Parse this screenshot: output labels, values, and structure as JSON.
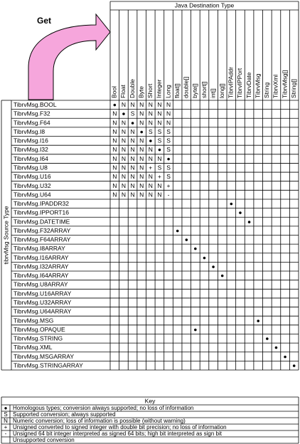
{
  "get_label": "Get",
  "header": {
    "title": "Java Destination Type",
    "columns": [
      "Bool",
      "Float",
      "Double",
      "Byte",
      "Short",
      "Integer",
      "Long",
      "float[]",
      "double[]",
      "byte[]",
      "short[]",
      "int[]",
      "long[]",
      "TibrvIPAddr",
      "TibrvIPPort",
      "TibrvDate",
      "TibrvMsg",
      "String",
      "TibrvXml",
      "TibrvMsg[]",
      "String[]"
    ]
  },
  "side_label": "tibrvMsg Source Type",
  "rows": [
    {
      "label": "TibrvMsg.BOOL",
      "cells": [
        "●",
        "N",
        "N",
        "N",
        "N",
        "N",
        "N",
        null,
        null,
        null,
        null,
        null,
        null,
        null,
        null,
        null,
        null,
        null,
        null,
        null,
        null
      ]
    },
    {
      "label": "TibrvMsg.F32",
      "cells": [
        "N",
        "●",
        "S",
        "N",
        "N",
        "N",
        "N",
        null,
        null,
        null,
        null,
        null,
        null,
        null,
        null,
        null,
        null,
        null,
        null,
        null,
        null
      ]
    },
    {
      "label": "TibrvMsg.F64",
      "cells": [
        "N",
        "N",
        "●",
        "N",
        "N",
        "N",
        "N",
        null,
        null,
        null,
        null,
        null,
        null,
        null,
        null,
        null,
        null,
        null,
        null,
        null,
        null
      ]
    },
    {
      "label": "TibrvMsg.I8",
      "cells": [
        "N",
        "N",
        "N",
        "●",
        "S",
        "S",
        "S",
        null,
        null,
        null,
        null,
        null,
        null,
        null,
        null,
        null,
        null,
        null,
        null,
        null,
        null
      ]
    },
    {
      "label": "TibrvMsg.I16",
      "cells": [
        "N",
        "N",
        "N",
        "N",
        "●",
        "S",
        "S",
        null,
        null,
        null,
        null,
        null,
        null,
        null,
        null,
        null,
        null,
        null,
        null,
        null,
        null
      ]
    },
    {
      "label": "TibrvMsg.I32",
      "cells": [
        "N",
        "N",
        "N",
        "N",
        "N",
        "●",
        "S",
        null,
        null,
        null,
        null,
        null,
        null,
        null,
        null,
        null,
        null,
        null,
        null,
        null,
        null
      ]
    },
    {
      "label": "TibrvMsg.I64",
      "cells": [
        "N",
        "N",
        "N",
        "N",
        "N",
        "N",
        "●",
        null,
        null,
        null,
        null,
        null,
        null,
        null,
        null,
        null,
        null,
        null,
        null,
        null,
        null
      ]
    },
    {
      "label": "TibrvMsg.U8",
      "cells": [
        "N",
        "N",
        "N",
        "N",
        "+",
        "S",
        "S",
        null,
        null,
        null,
        null,
        null,
        null,
        null,
        null,
        null,
        null,
        null,
        null,
        null,
        null
      ]
    },
    {
      "label": "TibrvMsg.U16",
      "cells": [
        "N",
        "N",
        "N",
        "N",
        "N",
        "+",
        "S",
        null,
        null,
        null,
        null,
        null,
        null,
        null,
        null,
        null,
        null,
        null,
        null,
        null,
        null
      ]
    },
    {
      "label": "TibrvMsg.U32",
      "cells": [
        "N",
        "N",
        "N",
        "N",
        "N",
        "N",
        "+",
        null,
        null,
        null,
        null,
        null,
        null,
        null,
        null,
        null,
        null,
        null,
        null,
        null,
        null
      ]
    },
    {
      "label": "TibrvMsg.U64",
      "cells": [
        "N",
        "N",
        "N",
        "N",
        "N",
        "N",
        "-",
        null,
        null,
        null,
        null,
        null,
        null,
        null,
        null,
        null,
        null,
        null,
        null,
        null,
        null
      ]
    },
    {
      "label": "TibrvMsg.IPADDR32",
      "cells": [
        null,
        null,
        null,
        null,
        null,
        null,
        null,
        null,
        null,
        null,
        null,
        null,
        null,
        "●",
        null,
        null,
        null,
        null,
        null,
        null,
        null
      ]
    },
    {
      "label": "TibrvMsg.IPPORT16",
      "cells": [
        null,
        null,
        null,
        null,
        null,
        null,
        null,
        null,
        null,
        null,
        null,
        null,
        null,
        null,
        "●",
        null,
        null,
        null,
        null,
        null,
        null
      ]
    },
    {
      "label": "TibrvMsg.DATETIME",
      "cells": [
        null,
        null,
        null,
        null,
        null,
        null,
        null,
        null,
        null,
        null,
        null,
        null,
        null,
        null,
        null,
        "●",
        null,
        null,
        null,
        null,
        null
      ]
    },
    {
      "label": "TibrvMsg.F32ARRAY",
      "cells": [
        null,
        null,
        null,
        null,
        null,
        null,
        null,
        "●",
        null,
        null,
        null,
        null,
        null,
        null,
        null,
        null,
        null,
        null,
        null,
        null,
        null
      ]
    },
    {
      "label": "TibrvMsg.F64ARRAY",
      "cells": [
        null,
        null,
        null,
        null,
        null,
        null,
        null,
        null,
        "●",
        null,
        null,
        null,
        null,
        null,
        null,
        null,
        null,
        null,
        null,
        null,
        null
      ]
    },
    {
      "label": "TibrvMsg.I8ARRAY",
      "cells": [
        null,
        null,
        null,
        null,
        null,
        null,
        null,
        null,
        null,
        "●",
        null,
        null,
        null,
        null,
        null,
        null,
        null,
        null,
        null,
        null,
        null
      ]
    },
    {
      "label": "TibrvMsg.I16ARRAY",
      "cells": [
        null,
        null,
        null,
        null,
        null,
        null,
        null,
        null,
        null,
        null,
        "●",
        null,
        null,
        null,
        null,
        null,
        null,
        null,
        null,
        null,
        null
      ]
    },
    {
      "label": "TibrvMsg.I32ARRAY",
      "cells": [
        null,
        null,
        null,
        null,
        null,
        null,
        null,
        null,
        null,
        null,
        null,
        "●",
        null,
        null,
        null,
        null,
        null,
        null,
        null,
        null,
        null
      ]
    },
    {
      "label": "TibrvMsg.I64ARRAY",
      "cells": [
        null,
        null,
        null,
        null,
        null,
        null,
        null,
        null,
        null,
        null,
        null,
        null,
        "●",
        null,
        null,
        null,
        null,
        null,
        null,
        null,
        null
      ]
    },
    {
      "label": "TibrvMsg.U8ARRAY",
      "cells": [
        null,
        null,
        null,
        null,
        null,
        null,
        null,
        null,
        null,
        null,
        null,
        null,
        null,
        null,
        null,
        null,
        null,
        null,
        null,
        null,
        null
      ]
    },
    {
      "label": "TibrvMsg.U16ARRAY",
      "cells": [
        null,
        null,
        null,
        null,
        null,
        null,
        null,
        null,
        null,
        null,
        null,
        null,
        null,
        null,
        null,
        null,
        null,
        null,
        null,
        null,
        null
      ]
    },
    {
      "label": "TibrvMsg.U32ARRAY",
      "cells": [
        null,
        null,
        null,
        null,
        null,
        null,
        null,
        null,
        null,
        null,
        null,
        null,
        null,
        null,
        null,
        null,
        null,
        null,
        null,
        null,
        null
      ]
    },
    {
      "label": "TibrvMsg.U64ARRAY",
      "cells": [
        null,
        null,
        null,
        null,
        null,
        null,
        null,
        null,
        null,
        null,
        null,
        null,
        null,
        null,
        null,
        null,
        null,
        null,
        null,
        null,
        null
      ]
    },
    {
      "label": "TibrvMsg.MSG",
      "cells": [
        null,
        null,
        null,
        null,
        null,
        null,
        null,
        null,
        null,
        null,
        null,
        null,
        null,
        null,
        null,
        null,
        "●",
        null,
        null,
        null,
        null
      ]
    },
    {
      "label": "TibrvMsg.OPAQUE",
      "cells": [
        null,
        null,
        null,
        null,
        null,
        null,
        null,
        null,
        null,
        "●",
        null,
        null,
        null,
        null,
        null,
        null,
        null,
        null,
        null,
        null,
        null
      ]
    },
    {
      "label": "TibrvMsg.STRING",
      "cells": [
        null,
        null,
        null,
        null,
        null,
        null,
        null,
        null,
        null,
        null,
        null,
        null,
        null,
        null,
        null,
        null,
        null,
        "●",
        null,
        null,
        null
      ]
    },
    {
      "label": "TibrvMsg.XML",
      "cells": [
        null,
        null,
        null,
        null,
        null,
        null,
        null,
        null,
        null,
        null,
        null,
        null,
        null,
        null,
        null,
        null,
        null,
        null,
        "●",
        null,
        null
      ]
    },
    {
      "label": "TibrvMsg.MSGARRAY",
      "cells": [
        null,
        null,
        null,
        null,
        null,
        null,
        null,
        null,
        null,
        null,
        null,
        null,
        null,
        null,
        null,
        null,
        null,
        null,
        null,
        "●",
        null
      ]
    },
    {
      "label": "TibrvMsg.STRINGARRAY",
      "cells": [
        null,
        null,
        null,
        null,
        null,
        null,
        null,
        null,
        null,
        null,
        null,
        null,
        null,
        null,
        null,
        null,
        null,
        null,
        null,
        null,
        "●"
      ]
    }
  ],
  "key": {
    "title": "Key",
    "entries": [
      {
        "symbol": "●",
        "text": "Homologous types; conversion always supported; no loss of information"
      },
      {
        "symbol": "S",
        "text": "Supported conversion; always supported"
      },
      {
        "symbol": "N",
        "text": "Numeric conversion; loss of information is possible (without warning)"
      },
      {
        "symbol": "+",
        "text": "Unsigned converted to signed integer with double bit precision; no loss of information"
      },
      {
        "symbol": "-",
        "text": "Unsigned 64 bit integer interpreted as signed 64 bits; high bit interpreted as sign bit"
      },
      {
        "symbol": null,
        "text": "Unsupported conversion"
      }
    ]
  }
}
